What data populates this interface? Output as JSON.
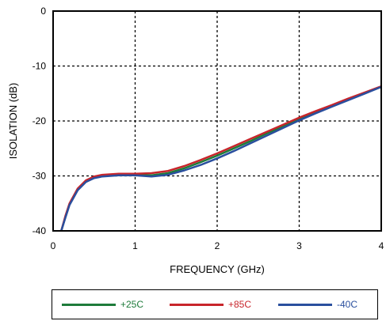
{
  "chart_data": {
    "type": "line",
    "title": "",
    "xlabel": "FREQUENCY (GHz)",
    "ylabel": "ISOLATION  (dB)",
    "xlim": [
      0,
      4
    ],
    "ylim": [
      -40,
      0
    ],
    "xticks": [
      "0",
      "1",
      "2",
      "3",
      "4"
    ],
    "yticks": [
      "0",
      "-10",
      "-20",
      "-30",
      "-40"
    ],
    "grid": true,
    "grid_style": "dashed",
    "legend_position": "bottom",
    "series": [
      {
        "name": "+25C",
        "color": "#1e7b3a",
        "x": [
          0.1,
          0.15,
          0.2,
          0.3,
          0.4,
          0.5,
          0.6,
          0.8,
          1.0,
          1.2,
          1.4,
          1.6,
          1.8,
          2.0,
          2.2,
          2.4,
          2.6,
          2.8,
          3.0,
          3.2,
          3.4,
          3.6,
          3.8,
          4.0
        ],
        "y": [
          -40,
          -37.5,
          -35.2,
          -32.5,
          -31.0,
          -30.3,
          -30.0,
          -29.8,
          -29.8,
          -29.9,
          -29.5,
          -28.6,
          -27.5,
          -26.3,
          -25.0,
          -23.7,
          -22.3,
          -21.0,
          -19.6,
          -18.4,
          -17.3,
          -16.1,
          -14.9,
          -13.8
        ]
      },
      {
        "name": "+85C",
        "color": "#c8252b",
        "x": [
          0.1,
          0.15,
          0.2,
          0.3,
          0.4,
          0.5,
          0.6,
          0.8,
          1.0,
          1.2,
          1.4,
          1.6,
          1.8,
          2.0,
          2.2,
          2.4,
          2.6,
          2.8,
          3.0,
          3.2,
          3.4,
          3.6,
          3.8,
          4.0
        ],
        "y": [
          -40,
          -37.3,
          -35.0,
          -32.3,
          -30.8,
          -30.1,
          -29.8,
          -29.6,
          -29.6,
          -29.5,
          -29.1,
          -28.2,
          -27.1,
          -25.9,
          -24.6,
          -23.3,
          -22.0,
          -20.7,
          -19.4,
          -18.2,
          -17.1,
          -15.9,
          -14.8,
          -13.7
        ]
      },
      {
        "name": "-40C",
        "color": "#2a4f9e",
        "x": [
          0.1,
          0.15,
          0.2,
          0.3,
          0.4,
          0.5,
          0.6,
          0.8,
          1.0,
          1.2,
          1.4,
          1.6,
          1.8,
          2.0,
          2.2,
          2.4,
          2.6,
          2.8,
          3.0,
          3.2,
          3.4,
          3.6,
          3.8,
          4.0
        ],
        "y": [
          -40,
          -37.6,
          -35.3,
          -32.6,
          -31.1,
          -30.4,
          -30.1,
          -29.9,
          -29.9,
          -30.1,
          -29.8,
          -29.0,
          -28.0,
          -26.8,
          -25.5,
          -24.1,
          -22.7,
          -21.3,
          -19.9,
          -18.6,
          -17.4,
          -16.2,
          -15.0,
          -13.8
        ]
      }
    ]
  }
}
